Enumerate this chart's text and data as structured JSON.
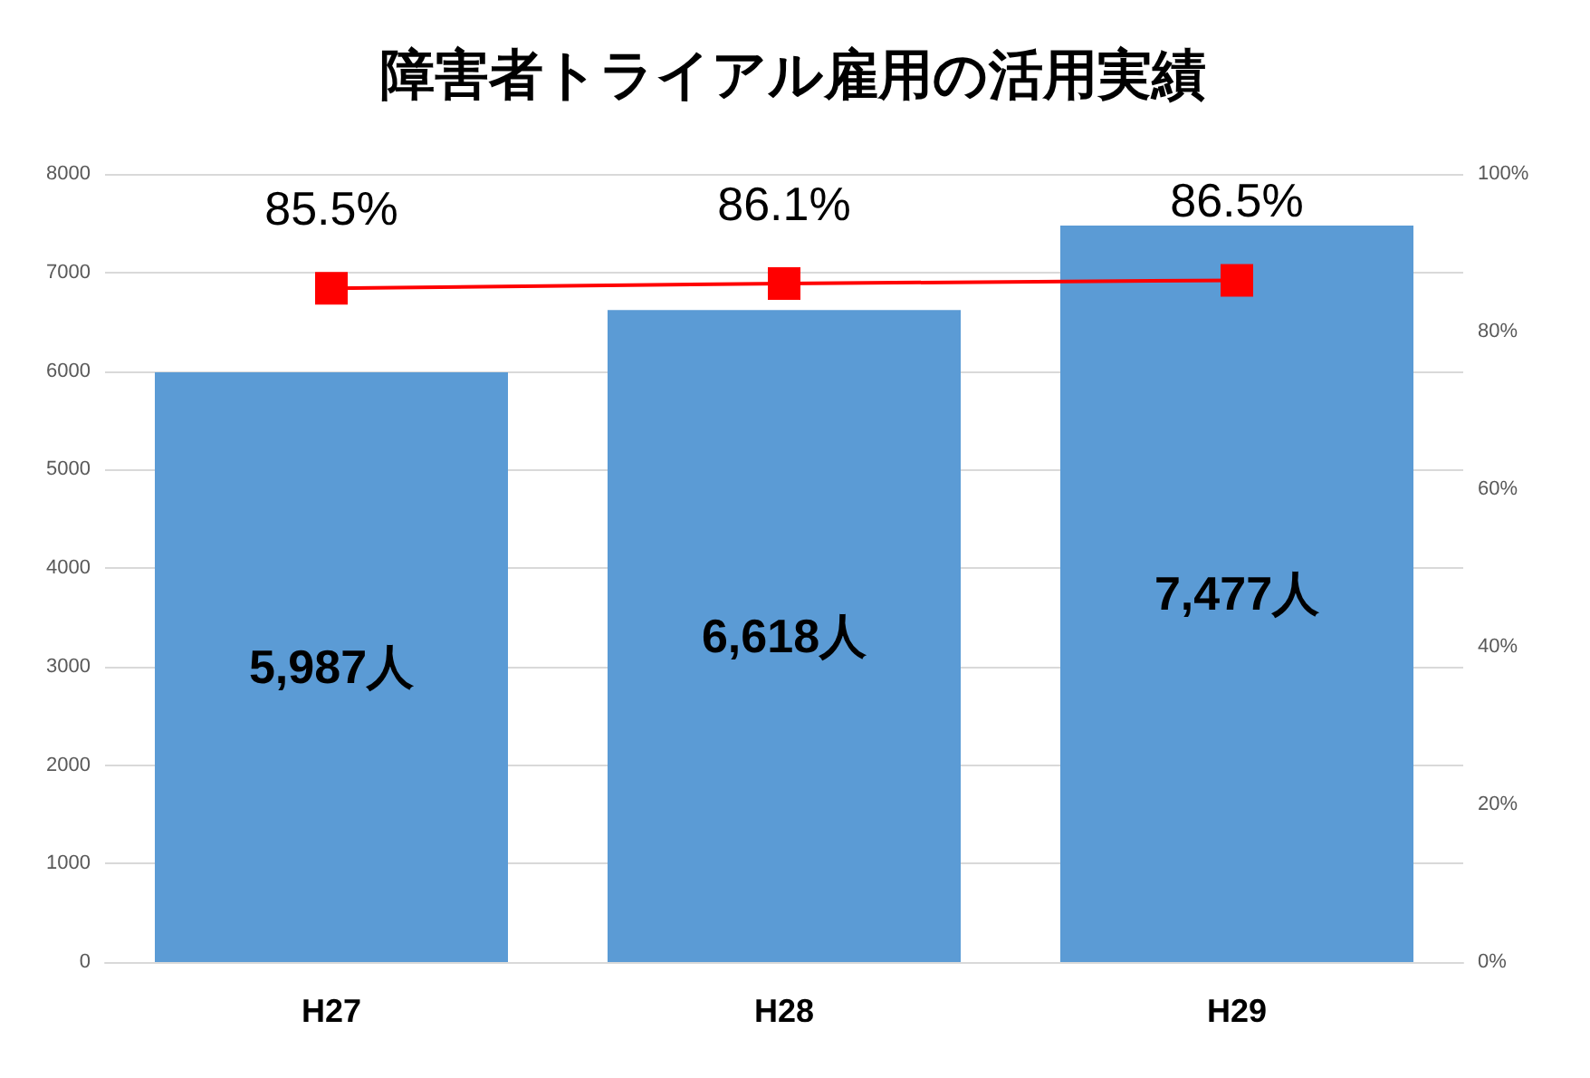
{
  "chart_data": {
    "type": "bar",
    "title": "障害者トライアル雇用の活用実績",
    "categories": [
      "H27",
      "H28",
      "H29"
    ],
    "series": [
      {
        "color": "#5b9bd5",
        "values": [
          5987,
          6618,
          7477
        ],
        "value_labels": [
          "5,987人",
          "6,618人",
          "7,477人"
        ]
      },
      {
        "type": "line",
        "axis": "y2",
        "color": "#ff0000",
        "values": [
          85.5,
          86.1,
          86.5
        ],
        "value_labels": [
          "85.5%",
          "86.1%",
          "86.5%"
        ],
        "marker": "square"
      }
    ],
    "ylim": [
      0,
      8000
    ],
    "yticks": [
      0,
      1000,
      2000,
      3000,
      4000,
      5000,
      6000,
      7000,
      8000
    ],
    "y2lim": [
      0,
      100
    ],
    "y2ticks": [
      {
        "value": 0,
        "label": "0%"
      },
      {
        "value": 20,
        "label": "20%"
      },
      {
        "value": 40,
        "label": "40%"
      },
      {
        "value": 60,
        "label": "60%"
      },
      {
        "value": 80,
        "label": "80%"
      },
      {
        "value": 100,
        "label": "100%"
      }
    ],
    "grid": "y"
  }
}
